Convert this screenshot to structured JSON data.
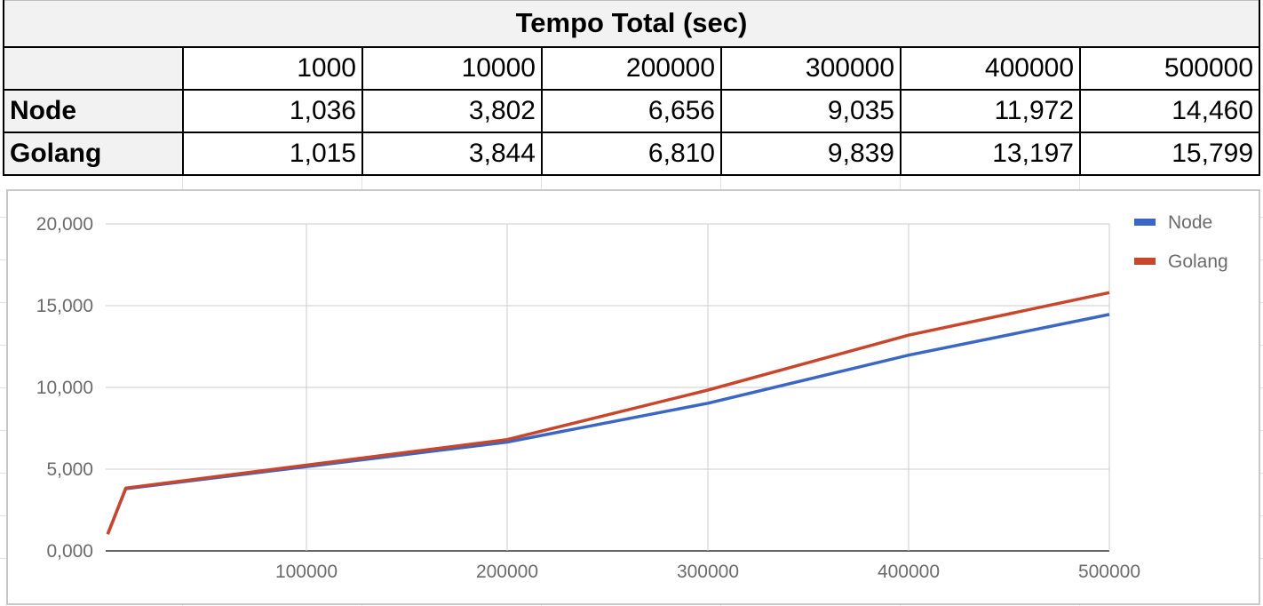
{
  "table": {
    "title": "Tempo Total (sec)",
    "columns": [
      "1000",
      "10000",
      "200000",
      "300000",
      "400000",
      "500000"
    ],
    "rows": [
      {
        "label": "Node",
        "values": [
          "1,036",
          "3,802",
          "6,656",
          "9,035",
          "11,972",
          "14,460"
        ]
      },
      {
        "label": "Golang",
        "values": [
          "1,015",
          "3,844",
          "6,810",
          "9,839",
          "13,197",
          "15,799"
        ]
      }
    ]
  },
  "chart_data": {
    "type": "line",
    "title": "",
    "xlabel": "",
    "ylabel": "",
    "x": [
      1000,
      10000,
      200000,
      300000,
      400000,
      500000
    ],
    "series": [
      {
        "name": "Node",
        "color": "#3c66c4",
        "values": [
          1036,
          3802,
          6656,
          9035,
          11972,
          14460
        ]
      },
      {
        "name": "Golang",
        "color": "#c8462b",
        "values": [
          1015,
          3844,
          6810,
          9839,
          13197,
          15799
        ]
      }
    ],
    "xlim": [
      0,
      500000
    ],
    "ylim": [
      0,
      20000
    ],
    "x_ticks": [
      100000,
      200000,
      300000,
      400000,
      500000
    ],
    "x_tick_labels": [
      "100000",
      "200000",
      "300000",
      "400000",
      "500000"
    ],
    "y_ticks": [
      0,
      5000,
      10000,
      15000,
      20000
    ],
    "y_tick_labels": [
      "0,000",
      "5,000",
      "10,000",
      "15,000",
      "20,000"
    ],
    "grid": true,
    "legend_position": "top-right"
  }
}
